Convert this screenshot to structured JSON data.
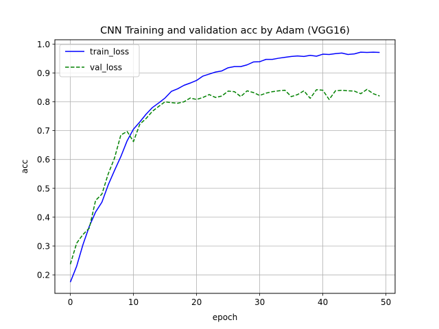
{
  "chart_data": {
    "type": "line",
    "title": "CNN Training and validation acc by Adam (VGG16)",
    "xlabel": "epoch",
    "ylabel": "acc",
    "xlim": [
      -2.45,
      51.45
    ],
    "ylim": [
      0.136,
      1.015
    ],
    "xticks": [
      0,
      10,
      20,
      30,
      40,
      50
    ],
    "yticks": [
      0.2,
      0.3,
      0.4,
      0.5,
      0.6,
      0.7,
      0.8,
      0.9,
      1.0
    ],
    "ytick_labels": [
      "0.2",
      "0.3",
      "0.4",
      "0.5",
      "0.6",
      "0.7",
      "0.8",
      "0.9",
      "1.0"
    ],
    "grid": true,
    "legend_position": "upper-left",
    "x": [
      0,
      1,
      2,
      3,
      4,
      5,
      6,
      7,
      8,
      9,
      10,
      11,
      12,
      13,
      14,
      15,
      16,
      17,
      18,
      19,
      20,
      21,
      22,
      23,
      24,
      25,
      26,
      27,
      28,
      29,
      30,
      31,
      32,
      33,
      34,
      35,
      36,
      37,
      38,
      39,
      40,
      41,
      42,
      43,
      44,
      45,
      46,
      47,
      48,
      49
    ],
    "series": [
      {
        "name": "train_loss",
        "color": "#0000ff",
        "style": "solid",
        "values": [
          0.175,
          0.23,
          0.305,
          0.368,
          0.418,
          0.452,
          0.512,
          0.562,
          0.61,
          0.665,
          0.705,
          0.73,
          0.757,
          0.78,
          0.796,
          0.813,
          0.836,
          0.845,
          0.857,
          0.865,
          0.874,
          0.889,
          0.896,
          0.903,
          0.907,
          0.918,
          0.922,
          0.922,
          0.928,
          0.938,
          0.939,
          0.947,
          0.947,
          0.951,
          0.954,
          0.957,
          0.959,
          0.957,
          0.961,
          0.958,
          0.965,
          0.964,
          0.967,
          0.969,
          0.964,
          0.966,
          0.972,
          0.971,
          0.972,
          0.971
        ]
      },
      {
        "name": "val_loss",
        "color": "#008000",
        "style": "dashed",
        "values": [
          0.237,
          0.31,
          0.34,
          0.362,
          0.458,
          0.48,
          0.55,
          0.605,
          0.685,
          0.697,
          0.662,
          0.722,
          0.742,
          0.767,
          0.784,
          0.8,
          0.797,
          0.795,
          0.8,
          0.813,
          0.808,
          0.815,
          0.825,
          0.815,
          0.82,
          0.837,
          0.835,
          0.818,
          0.838,
          0.832,
          0.822,
          0.83,
          0.835,
          0.838,
          0.84,
          0.818,
          0.825,
          0.838,
          0.812,
          0.842,
          0.84,
          0.808,
          0.838,
          0.84,
          0.838,
          0.837,
          0.828,
          0.843,
          0.828,
          0.82
        ]
      }
    ]
  }
}
